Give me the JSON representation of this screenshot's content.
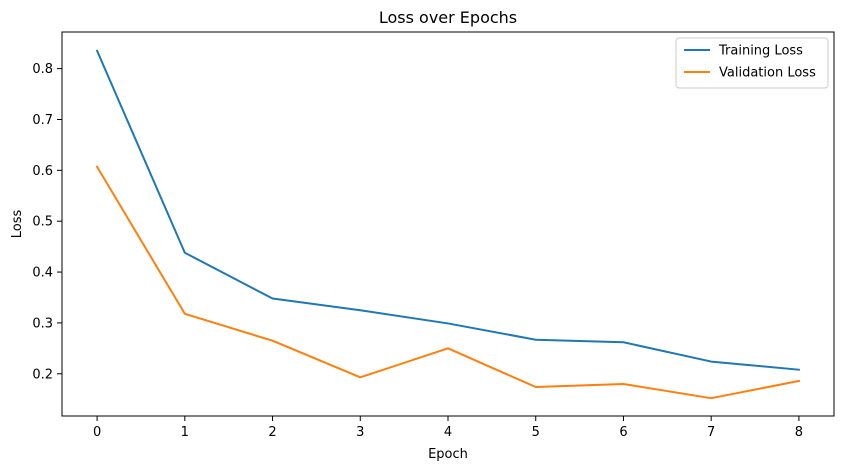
{
  "chart_data": {
    "type": "line",
    "title": "Loss over Epochs",
    "xlabel": "Epoch",
    "ylabel": "Loss",
    "x": [
      0,
      1,
      2,
      3,
      4,
      5,
      6,
      7,
      8
    ],
    "xlim": [
      -0.4,
      8.4
    ],
    "ylim": [
      0.117,
      0.872
    ],
    "xticks": [
      0,
      1,
      2,
      3,
      4,
      5,
      6,
      7,
      8
    ],
    "yticks": [
      0.2,
      0.3,
      0.4,
      0.5,
      0.6,
      0.7,
      0.8
    ],
    "grid": false,
    "legend_position": "top-right",
    "series": [
      {
        "name": "Training Loss",
        "color": "#1f77b4",
        "values": [
          0.835,
          0.438,
          0.348,
          0.325,
          0.299,
          0.267,
          0.262,
          0.224,
          0.208
        ]
      },
      {
        "name": "Validation Loss",
        "color": "#ff7f0e",
        "values": [
          0.607,
          0.318,
          0.265,
          0.193,
          0.25,
          0.174,
          0.18,
          0.152,
          0.186
        ]
      }
    ]
  }
}
